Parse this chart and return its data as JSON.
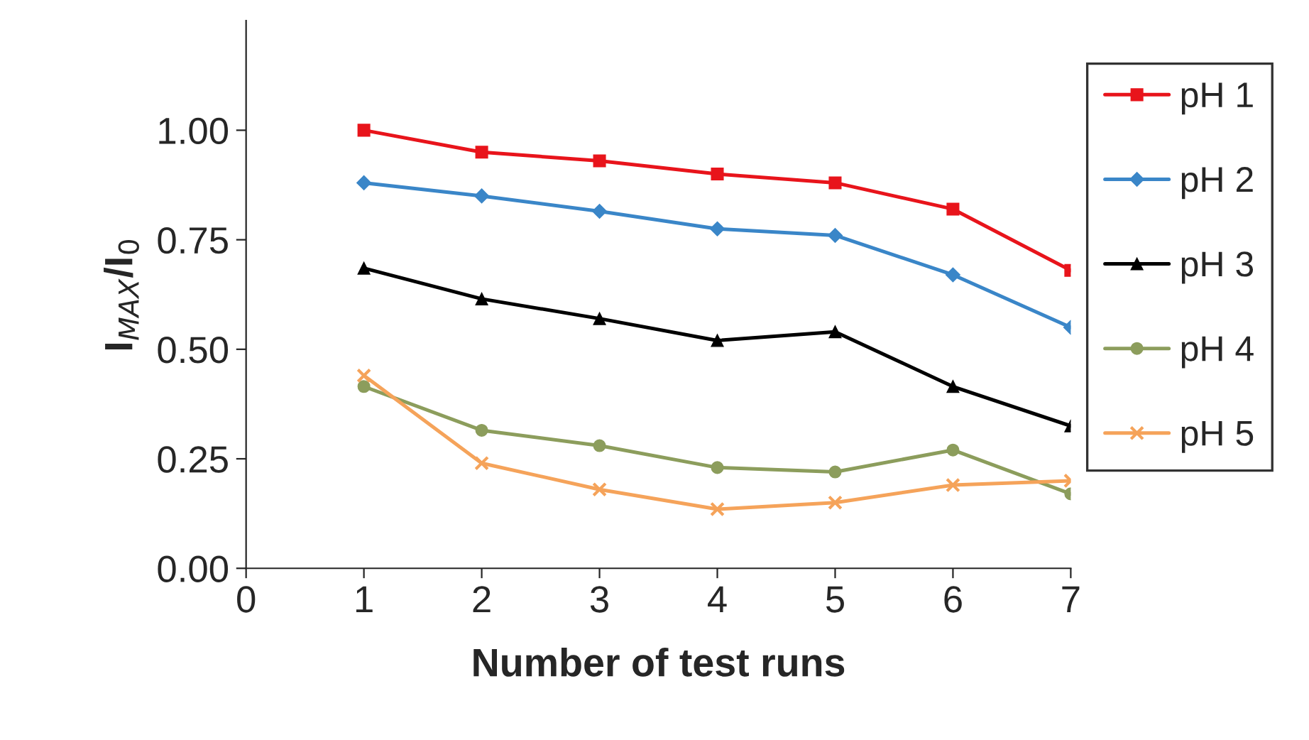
{
  "chart_data": {
    "type": "line",
    "xlabel": "Number of test runs",
    "ylabel": "I$_{MAX}$/I$_{0}$",
    "x": [
      1,
      2,
      3,
      4,
      5,
      6,
      7
    ],
    "series": [
      {
        "name": "pH 1",
        "color": "#e8141b",
        "marker": "square",
        "values": [
          1.0,
          0.95,
          0.93,
          0.9,
          0.88,
          0.82,
          0.68
        ]
      },
      {
        "name": "pH 2",
        "color": "#3a86c8",
        "marker": "diamond",
        "values": [
          0.88,
          0.85,
          0.815,
          0.775,
          0.76,
          0.67,
          0.55
        ]
      },
      {
        "name": "pH 3",
        "color": "#000000",
        "marker": "triangle",
        "values": [
          0.685,
          0.615,
          0.57,
          0.52,
          0.54,
          0.415,
          0.325
        ]
      },
      {
        "name": "pH 4",
        "color": "#8c9d5c",
        "marker": "circle",
        "values": [
          0.415,
          0.315,
          0.28,
          0.23,
          0.22,
          0.27,
          0.17
        ]
      },
      {
        "name": "pH 5",
        "color": "#f5a35a",
        "marker": "cross",
        "values": [
          0.44,
          0.24,
          0.18,
          0.135,
          0.15,
          0.19,
          0.2
        ]
      }
    ],
    "xlim": [
      0,
      7
    ],
    "xticks": [
      0,
      1,
      2,
      3,
      4,
      5,
      6,
      7
    ],
    "ylim": [
      0,
      1.25
    ],
    "yticks": [
      {
        "value": 0,
        "label": "0.00"
      },
      {
        "value": 0.25,
        "label": "0.25"
      },
      {
        "value": 0.5,
        "label": "0.50"
      },
      {
        "value": 0.75,
        "label": "0.75"
      },
      {
        "value": 1.0,
        "label": "1.00"
      }
    ],
    "grid": false,
    "legend": "right",
    "line_style": "solid"
  }
}
